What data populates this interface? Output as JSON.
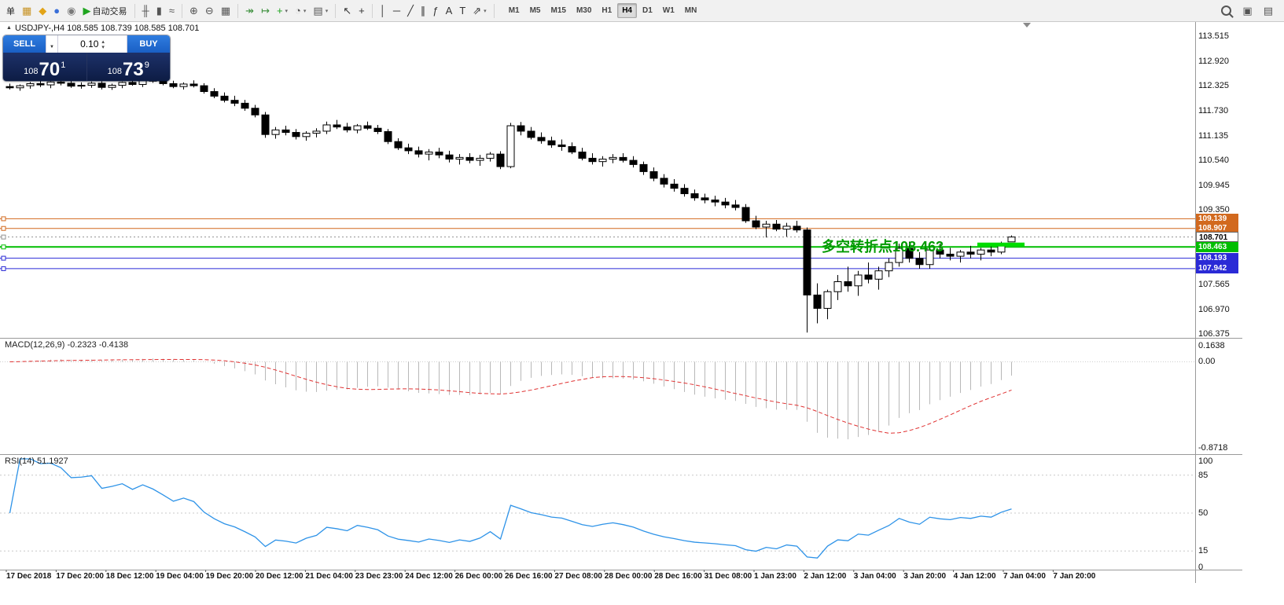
{
  "toolbar": {
    "items": [
      {
        "name": "new-order-button",
        "label": "单"
      },
      {
        "name": "new-chart-button",
        "glyph": "▦",
        "color": "#c79222"
      },
      {
        "name": "profiles-button",
        "glyph": "◆",
        "color": "#e2a418"
      },
      {
        "name": "market-watch-button",
        "glyph": "●",
        "color": "#3a6fd8"
      },
      {
        "name": "data-window-button",
        "glyph": "◉",
        "color": "#7a7a7a"
      },
      {
        "name": "autotrading-button",
        "glyph": "▶",
        "glyph_color": "#1fa51f",
        "label": "自动交易"
      },
      {
        "sep": true
      },
      {
        "name": "bar-chart-button",
        "glyph": "╫",
        "color": "#555555"
      },
      {
        "name": "candlestick-chart-button",
        "glyph": "▮",
        "color": "#555555"
      },
      {
        "name": "line-chart-button",
        "glyph": "≈",
        "color": "#555555"
      },
      {
        "sep": true
      },
      {
        "name": "zoom-in-button",
        "glyph": "⊕",
        "color": "#555555"
      },
      {
        "name": "zoom-out-button",
        "glyph": "⊖",
        "color": "#555555"
      },
      {
        "name": "tile-windows-button",
        "glyph": "▦",
        "color": "#555555"
      },
      {
        "sep": true
      },
      {
        "name": "auto-scroll-button",
        "glyph": "↠",
        "color": "#3c8f3c"
      },
      {
        "name": "chart-shift-button",
        "glyph": "↦",
        "color": "#3c8f3c"
      },
      {
        "name": "indicators-button",
        "glyph": "+",
        "glyph_color": "#1fa51f",
        "caret": true
      },
      {
        "name": "periods-button",
        "glyph": "◔",
        "color": "#555555",
        "caret": true
      },
      {
        "name": "templates-button",
        "glyph": "▤",
        "color": "#555555",
        "caret": true
      },
      {
        "sep": true
      },
      {
        "name": "cursor-button",
        "glyph": "↖",
        "color": "#333333"
      },
      {
        "name": "crosshair-button",
        "glyph": "+",
        "color": "#333333"
      },
      {
        "sep": true
      },
      {
        "name": "vertical-line-button",
        "glyph": "│",
        "color": "#333333"
      },
      {
        "name": "horizontal-line-button",
        "glyph": "─",
        "color": "#333333"
      },
      {
        "name": "trendline-button",
        "glyph": "╱",
        "color": "#333333"
      },
      {
        "name": "channel-button",
        "glyph": "∥",
        "color": "#333333"
      },
      {
        "name": "fibonacci-button",
        "glyph": "ƒ",
        "color": "#333333"
      },
      {
        "name": "text-button",
        "glyph": "A",
        "color": "#333333"
      },
      {
        "name": "label-button",
        "glyph": "T",
        "color": "#333333"
      },
      {
        "name": "arrows-button",
        "glyph": "⇗",
        "color": "#333333",
        "caret": true
      },
      {
        "sep": true
      }
    ],
    "timeframes": [
      "M1",
      "M5",
      "M15",
      "M30",
      "H1",
      "H4",
      "D1",
      "W1",
      "MN"
    ],
    "active_timeframe": "H4"
  },
  "chart": {
    "title": "USDJPY-,H4 108.585 108.739 108.585 108.701",
    "trade_panel": {
      "sell_label": "SELL",
      "buy_label": "BUY",
      "lot": "0.10",
      "bid_int": "108",
      "bid_pips": "70",
      "bid_point": "1",
      "ask_int": "108",
      "ask_pips": "73",
      "ask_point": "9"
    },
    "axis_labels": [
      "113.515",
      "112.920",
      "112.325",
      "111.730",
      "111.135",
      "110.540",
      "109.945",
      "109.350",
      "107.565",
      "106.970",
      "106.375"
    ],
    "hlines": [
      {
        "price": "109.139",
        "color": "#D2691E",
        "type": "solid"
      },
      {
        "price": "108.907",
        "color": "#D2691E",
        "type": "solid"
      },
      {
        "price": "108.701",
        "color": "#909090",
        "type": "dotted",
        "tag_bg": "#ffffff",
        "tag_fg": "#000000",
        "tag_border": "#666666"
      },
      {
        "price": "108.463",
        "color": "#00BE00",
        "type": "solid",
        "width": 2
      },
      {
        "price": "108.193",
        "color": "#2A2AD6",
        "type": "solid"
      },
      {
        "price": "107.942",
        "color": "#2A2AD6",
        "type": "solid"
      }
    ],
    "annotation": {
      "text": "多空转折点108.463",
      "color": "#009900"
    },
    "segment": {
      "price": "108.52",
      "color": "#00DD00"
    },
    "candles": [
      [
        112.31,
        112.38,
        112.24,
        112.28
      ],
      [
        112.28,
        112.36,
        112.21,
        112.33
      ],
      [
        112.33,
        112.42,
        112.26,
        112.38
      ],
      [
        112.38,
        112.47,
        112.3,
        112.35
      ],
      [
        112.35,
        112.44,
        112.27,
        112.42
      ],
      [
        112.42,
        112.5,
        112.34,
        112.39
      ],
      [
        112.39,
        112.45,
        112.28,
        112.32
      ],
      [
        112.32,
        112.41,
        112.26,
        112.34
      ],
      [
        112.34,
        112.43,
        112.28,
        112.39
      ],
      [
        112.39,
        112.44,
        112.24,
        112.29
      ],
      [
        112.29,
        112.38,
        112.23,
        112.34
      ],
      [
        112.34,
        112.43,
        112.27,
        112.41
      ],
      [
        112.41,
        112.47,
        112.33,
        112.36
      ],
      [
        112.36,
        112.52,
        112.3,
        112.48
      ],
      [
        112.48,
        112.56,
        112.4,
        112.44
      ],
      [
        112.44,
        112.5,
        112.34,
        112.38
      ],
      [
        112.38,
        112.45,
        112.27,
        112.31
      ],
      [
        112.31,
        112.41,
        112.24,
        112.37
      ],
      [
        112.37,
        112.46,
        112.29,
        112.33
      ],
      [
        112.33,
        112.39,
        112.14,
        112.19
      ],
      [
        112.19,
        112.27,
        112.03,
        112.08
      ],
      [
        112.08,
        112.17,
        111.93,
        111.98
      ],
      [
        111.98,
        112.09,
        111.84,
        111.91
      ],
      [
        111.91,
        111.99,
        111.73,
        111.79
      ],
      [
        111.79,
        111.87,
        111.57,
        111.63
      ],
      [
        111.63,
        111.7,
        111.08,
        111.16
      ],
      [
        111.16,
        111.34,
        111.06,
        111.27
      ],
      [
        111.27,
        111.37,
        111.14,
        111.21
      ],
      [
        111.21,
        111.29,
        111.04,
        111.11
      ],
      [
        111.11,
        111.24,
        111.01,
        111.19
      ],
      [
        111.19,
        111.31,
        111.09,
        111.24
      ],
      [
        111.24,
        111.47,
        111.17,
        111.39
      ],
      [
        111.39,
        111.51,
        111.29,
        111.34
      ],
      [
        111.34,
        111.44,
        111.21,
        111.27
      ],
      [
        111.27,
        111.41,
        111.19,
        111.37
      ],
      [
        111.37,
        111.47,
        111.27,
        111.31
      ],
      [
        111.31,
        111.39,
        111.17,
        111.23
      ],
      [
        111.23,
        111.29,
        110.93,
        110.99
      ],
      [
        110.99,
        111.07,
        110.79,
        110.84
      ],
      [
        110.84,
        110.94,
        110.69,
        110.77
      ],
      [
        110.77,
        110.87,
        110.61,
        110.69
      ],
      [
        110.69,
        110.81,
        110.54,
        110.74
      ],
      [
        110.74,
        110.84,
        110.59,
        110.67
      ],
      [
        110.67,
        110.77,
        110.49,
        110.57
      ],
      [
        110.57,
        110.69,
        110.44,
        110.61
      ],
      [
        110.61,
        110.71,
        110.47,
        110.54
      ],
      [
        110.54,
        110.67,
        110.41,
        110.59
      ],
      [
        110.59,
        110.74,
        110.51,
        110.69
      ],
      [
        110.69,
        110.76,
        110.33,
        110.39
      ],
      [
        110.39,
        111.44,
        110.35,
        111.37
      ],
      [
        111.37,
        111.46,
        111.14,
        111.24
      ],
      [
        111.24,
        111.34,
        111.04,
        111.09
      ],
      [
        111.09,
        111.21,
        110.94,
        111.01
      ],
      [
        111.01,
        111.11,
        110.84,
        110.91
      ],
      [
        110.91,
        111.04,
        110.77,
        110.87
      ],
      [
        110.87,
        110.97,
        110.69,
        110.74
      ],
      [
        110.74,
        110.84,
        110.54,
        110.59
      ],
      [
        110.59,
        110.71,
        110.44,
        110.51
      ],
      [
        110.51,
        110.64,
        110.39,
        110.57
      ],
      [
        110.57,
        110.69,
        110.47,
        110.61
      ],
      [
        110.61,
        110.71,
        110.49,
        110.54
      ],
      [
        110.54,
        110.64,
        110.37,
        110.44
      ],
      [
        110.44,
        110.51,
        110.19,
        110.27
      ],
      [
        110.27,
        110.37,
        110.04,
        110.11
      ],
      [
        110.11,
        110.21,
        109.89,
        109.97
      ],
      [
        109.97,
        110.09,
        109.79,
        109.87
      ],
      [
        109.87,
        109.97,
        109.67,
        109.74
      ],
      [
        109.74,
        109.84,
        109.57,
        109.64
      ],
      [
        109.64,
        109.74,
        109.51,
        109.59
      ],
      [
        109.59,
        109.69,
        109.44,
        109.54
      ],
      [
        109.54,
        109.64,
        109.39,
        109.47
      ],
      [
        109.47,
        109.59,
        109.34,
        109.41
      ],
      [
        109.41,
        109.49,
        109.04,
        109.09
      ],
      [
        109.09,
        109.21,
        108.89,
        108.94
      ],
      [
        108.94,
        109.09,
        108.69,
        109.01
      ],
      [
        109.01,
        109.11,
        108.84,
        108.89
      ],
      [
        108.89,
        109.04,
        108.71,
        108.96
      ],
      [
        108.96,
        109.09,
        108.81,
        108.87
      ],
      [
        108.87,
        108.93,
        106.41,
        107.31
      ],
      [
        107.31,
        107.59,
        106.63,
        106.99
      ],
      [
        106.99,
        107.44,
        106.73,
        107.39
      ],
      [
        107.39,
        107.79,
        107.19,
        107.63
      ],
      [
        107.63,
        107.99,
        107.39,
        107.53
      ],
      [
        107.53,
        107.89,
        107.29,
        107.79
      ],
      [
        107.79,
        108.09,
        107.59,
        107.69
      ],
      [
        107.69,
        107.99,
        107.44,
        107.89
      ],
      [
        107.89,
        108.19,
        107.74,
        108.09
      ],
      [
        108.09,
        108.54,
        107.99,
        108.43
      ],
      [
        108.43,
        108.59,
        108.09,
        108.19
      ],
      [
        108.19,
        108.34,
        107.94,
        108.04
      ],
      [
        108.04,
        108.49,
        107.94,
        108.39
      ],
      [
        108.39,
        108.54,
        108.19,
        108.29
      ],
      [
        108.29,
        108.44,
        108.14,
        108.24
      ],
      [
        108.24,
        108.39,
        108.09,
        108.34
      ],
      [
        108.34,
        108.49,
        108.19,
        108.29
      ],
      [
        108.29,
        108.44,
        108.14,
        108.39
      ],
      [
        108.39,
        108.54,
        108.24,
        108.34
      ],
      [
        108.34,
        108.59,
        108.29,
        108.55
      ],
      [
        108.585,
        108.739,
        108.585,
        108.701
      ]
    ]
  },
  "macd": {
    "title": "MACD(12,26,9) -0.2323 -0.4138",
    "axis": [
      "0.1638",
      "0.00",
      "-0.8718"
    ],
    "hist_color": "#b8b8b8",
    "signal_color": "#e03232"
  },
  "rsi": {
    "title": "RSI(14) 51.1927",
    "axis": [
      "100",
      "85",
      "50",
      "15",
      "0"
    ],
    "levels": [
      85,
      50,
      15
    ],
    "line_color": "#2E93E8"
  },
  "time_axis": {
    "labels": [
      "17 Dec 2018",
      "17 Dec 20:00",
      "18 Dec 12:00",
      "19 Dec 04:00",
      "19 Dec 20:00",
      "20 Dec 12:00",
      "21 Dec 04:00",
      "23 Dec 23:00",
      "24 Dec 12:00",
      "26 Dec 00:00",
      "26 Dec 16:00",
      "27 Dec 08:00",
      "28 Dec 00:00",
      "28 Dec 16:00",
      "31 Dec 08:00",
      "1 Jan 23:00",
      "2 Jan 12:00",
      "3 Jan 04:00",
      "3 Jan 20:00",
      "4 Jan 12:00",
      "7 Jan 04:00",
      "7 Jan 20:00"
    ]
  }
}
